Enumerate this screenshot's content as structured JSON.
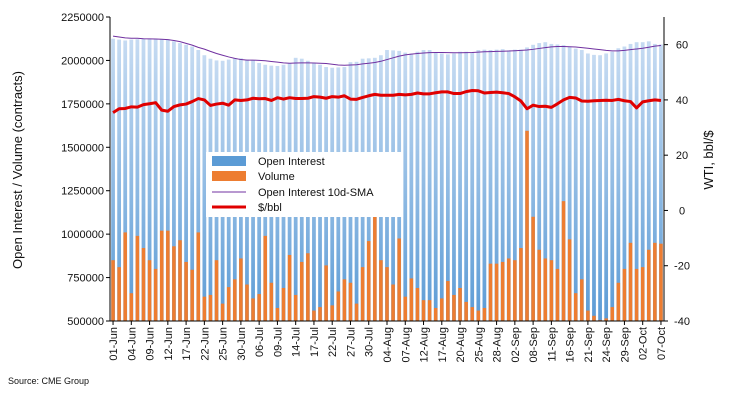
{
  "chart_data": {
    "type": "bar",
    "title": "",
    "ylabel_left": "Open Interest / Volume (contracts)",
    "ylabel_right": "WTI, bbl/$",
    "ylim_left": [
      500000,
      2250000
    ],
    "yticks_left": [
      500000,
      750000,
      1000000,
      1250000,
      1500000,
      1750000,
      2000000,
      2250000
    ],
    "ylim_right": [
      -40,
      70
    ],
    "yticks_right": [
      -40,
      -20,
      0,
      20,
      40,
      60
    ],
    "legend_position": "center-left",
    "source": "Source: CME Group",
    "x_tick_labels": [
      "01-Jun",
      "04-Jun",
      "09-Jun",
      "12-Jun",
      "17-Jun",
      "22-Jun",
      "25-Jun",
      "30-Jun",
      "06-Jul",
      "09-Jul",
      "14-Jul",
      "17-Jul",
      "22-Jul",
      "27-Jul",
      "30-Jul",
      "04-Aug",
      "07-Aug",
      "12-Aug",
      "17-Aug",
      "20-Aug",
      "25-Aug",
      "28-Aug",
      "02-Sep",
      "08-Sep",
      "11-Sep",
      "16-Sep",
      "21-Sep",
      "24-Sep",
      "29-Sep",
      "02-Oct",
      "07-Oct"
    ],
    "x_tick_label_index": [
      0,
      3,
      6,
      9,
      12,
      15,
      18,
      21,
      24,
      27,
      30,
      33,
      36,
      39,
      42,
      45,
      48,
      51,
      54,
      57,
      60,
      63,
      66,
      69,
      72,
      75,
      78,
      81,
      84,
      87,
      90
    ],
    "series": [
      {
        "name": "Open Interest",
        "type": "bar",
        "axis": "left",
        "color": "#5b9bd5",
        "values": [
          2125000,
          2120000,
          2115000,
          2120000,
          2122000,
          2124000,
          2122000,
          2124000,
          2123000,
          2122000,
          2110000,
          2100000,
          2090000,
          2080000,
          2060000,
          2030000,
          2010000,
          2000000,
          1998000,
          2005000,
          2010000,
          2012000,
          2005000,
          2000000,
          1985000,
          1975000,
          1970000,
          1968000,
          1975000,
          1985000,
          2015000,
          2010000,
          1998000,
          1985000,
          1975000,
          1962000,
          1958000,
          1960000,
          1962000,
          1990000,
          1992000,
          2010000,
          2012000,
          2015000,
          2030000,
          2060000,
          2058000,
          2055000,
          2045000,
          2040000,
          2050000,
          2060000,
          2060000,
          2045000,
          2040000,
          2035000,
          2040000,
          2050000,
          2050000,
          2045000,
          2060000,
          2062000,
          2060000,
          2062000,
          2065000,
          2058000,
          2062000,
          2062000,
          2075000,
          2090000,
          2100000,
          2105000,
          2095000,
          2092000,
          2088000,
          2078000,
          2068000,
          2060000,
          2040000,
          2032000,
          2030000,
          2040000,
          2050000,
          2070000,
          2080000,
          2095000,
          2105000,
          2105000,
          2110000,
          2095000,
          2092000
        ]
      },
      {
        "name": "Volume",
        "type": "bar",
        "axis": "left",
        "color": "#ed7d31",
        "values": [
          850000,
          810000,
          1010000,
          660000,
          990000,
          920000,
          850000,
          800000,
          1020000,
          1020000,
          930000,
          965000,
          840000,
          795000,
          1010000,
          640000,
          650000,
          850000,
          600000,
          695000,
          740000,
          860000,
          710000,
          630000,
          655000,
          990000,
          720000,
          575000,
          690000,
          880000,
          650000,
          840000,
          890000,
          560000,
          580000,
          820000,
          590000,
          670000,
          740000,
          720000,
          600000,
          810000,
          960000,
          1145000,
          850000,
          810000,
          710000,
          975000,
          640000,
          745000,
          690000,
          620000,
          620000,
          575000,
          630000,
          730000,
          650000,
          690000,
          610000,
          580000,
          560000,
          575000,
          830000,
          830000,
          840000,
          860000,
          850000,
          920000,
          1595000,
          1100000,
          910000,
          860000,
          850000,
          800000,
          1190000,
          970000,
          660000,
          740000,
          560000,
          530000,
          505000,
          515000,
          580000,
          720000,
          800000,
          950000,
          800000,
          810000,
          910000,
          950000,
          945000
        ]
      },
      {
        "name": "Open Interest 10d-SMA",
        "type": "line",
        "axis": "left",
        "color": "#7030a0",
        "values": [
          2140000,
          2135000,
          2130000,
          2128000,
          2128000,
          2125000,
          2124000,
          2123000,
          2122000,
          2120000,
          2115000,
          2108000,
          2098000,
          2088000,
          2075000,
          2065000,
          2052000,
          2040000,
          2030000,
          2020000,
          2012000,
          2005000,
          2002000,
          2002000,
          2000000,
          1998000,
          1994000,
          1990000,
          1986000,
          1984000,
          1985000,
          1986000,
          1986000,
          1985000,
          1984000,
          1982000,
          1978000,
          1974000,
          1972000,
          1974000,
          1975000,
          1980000,
          1984000,
          1988000,
          1995000,
          2005000,
          2015000,
          2025000,
          2032000,
          2036000,
          2040000,
          2043000,
          2045000,
          2046000,
          2046000,
          2045000,
          2044000,
          2044000,
          2045000,
          2046000,
          2048000,
          2050000,
          2051000,
          2052000,
          2053000,
          2054000,
          2056000,
          2058000,
          2060000,
          2064000,
          2069000,
          2074000,
          2078000,
          2080000,
          2080000,
          2079000,
          2077000,
          2074000,
          2070000,
          2066000,
          2062000,
          2058000,
          2055000,
          2055000,
          2058000,
          2062000,
          2066000,
          2070000,
          2076000,
          2082000,
          2086000
        ]
      },
      {
        "name": "$/bbl",
        "type": "line",
        "axis": "right",
        "color": "#e00000",
        "values": [
          35.4,
          36.8,
          36.9,
          37.5,
          37.4,
          38.3,
          38.6,
          39.0,
          36.3,
          35.9,
          37.6,
          38.2,
          38.5,
          39.4,
          40.5,
          40.0,
          38.0,
          38.5,
          38.8,
          38.1,
          40.0,
          39.8,
          40.0,
          40.6,
          40.4,
          40.5,
          39.8,
          40.8,
          40.3,
          40.8,
          40.5,
          40.5,
          40.6,
          41.2,
          41.0,
          40.6,
          41.2,
          41.0,
          41.5,
          40.3,
          40.2,
          40.9,
          41.5,
          42.0,
          41.7,
          41.7,
          41.7,
          42.0,
          41.8,
          42.0,
          42.5,
          42.2,
          42.2,
          42.6,
          42.9,
          42.9,
          42.3,
          42.3,
          43.0,
          43.4,
          43.3,
          42.5,
          42.7,
          42.8,
          42.6,
          42.3,
          41.1,
          39.6,
          36.8,
          38.1,
          37.6,
          37.7,
          37.3,
          38.6,
          40.0,
          40.9,
          40.7,
          39.6,
          39.5,
          39.7,
          39.8,
          39.9,
          39.8,
          40.2,
          39.7,
          39.4,
          37.1,
          39.3,
          39.7,
          40.0,
          39.8
        ]
      }
    ]
  }
}
